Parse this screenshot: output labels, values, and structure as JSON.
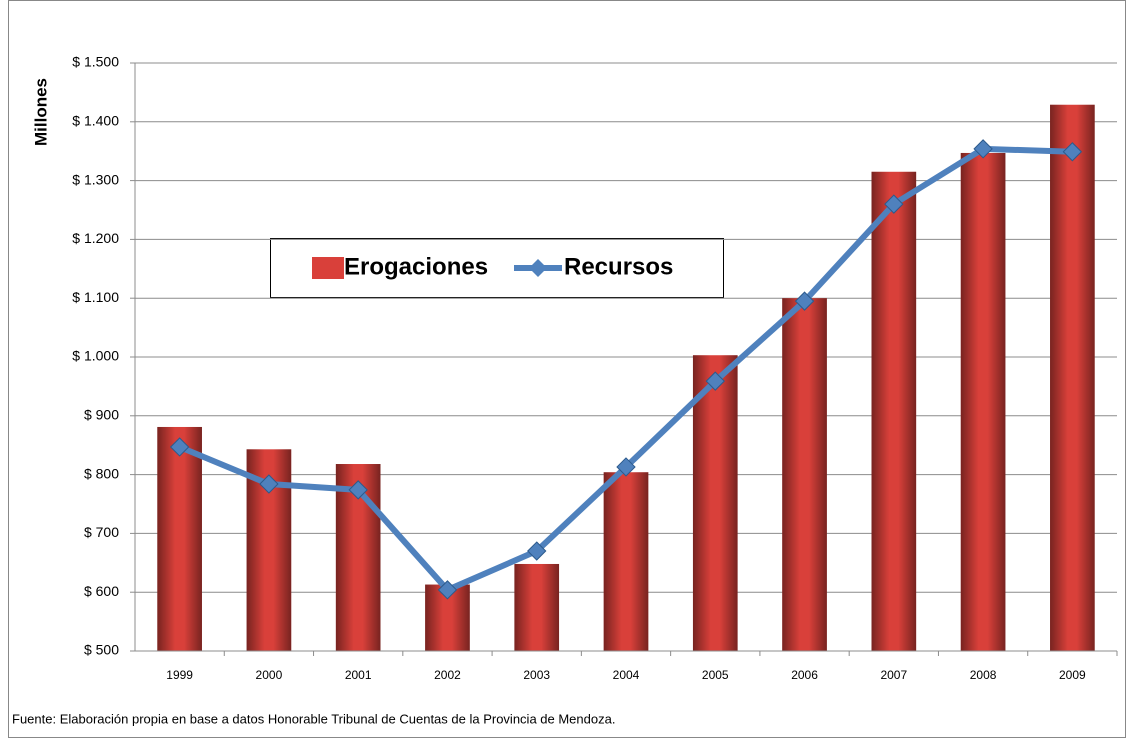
{
  "chart_data": {
    "type": "bar+line",
    "y_label": "Millones",
    "categories": [
      "1999",
      "2000",
      "2001",
      "2002",
      "2003",
      "2004",
      "2005",
      "2006",
      "2007",
      "2008",
      "2009"
    ],
    "series": [
      {
        "name": "Erogaciones",
        "type": "bar",
        "color": "#d9403a",
        "values": [
          881,
          843,
          818,
          613,
          648,
          804,
          1003,
          1100,
          1315,
          1347,
          1429
        ]
      },
      {
        "name": "Recursos",
        "type": "line",
        "color": "#4f81bd",
        "values": [
          847,
          784,
          774,
          604,
          670,
          813,
          959,
          1095,
          1260,
          1354,
          1349
        ]
      }
    ],
    "ylim": [
      500,
      1500
    ],
    "yticks": [
      {
        "value": 500,
        "label": "$ 500"
      },
      {
        "value": 600,
        "label": "$ 600"
      },
      {
        "value": 700,
        "label": "$ 700"
      },
      {
        "value": 800,
        "label": "$ 800"
      },
      {
        "value": 900,
        "label": "$ 900"
      },
      {
        "value": 1000,
        "label": "$ 1.000"
      },
      {
        "value": 1100,
        "label": "$ 1.100"
      },
      {
        "value": 1200,
        "label": "$ 1.200"
      },
      {
        "value": 1300,
        "label": "$ 1.300"
      },
      {
        "value": 1400,
        "label": "$ 1.400"
      },
      {
        "value": 1500,
        "label": "$ 1.500"
      }
    ],
    "grid": true,
    "note": "Fuente: Elaboración propia en base a datos Honorable Tribunal de Cuentas de la Provincia de Mendoza."
  }
}
